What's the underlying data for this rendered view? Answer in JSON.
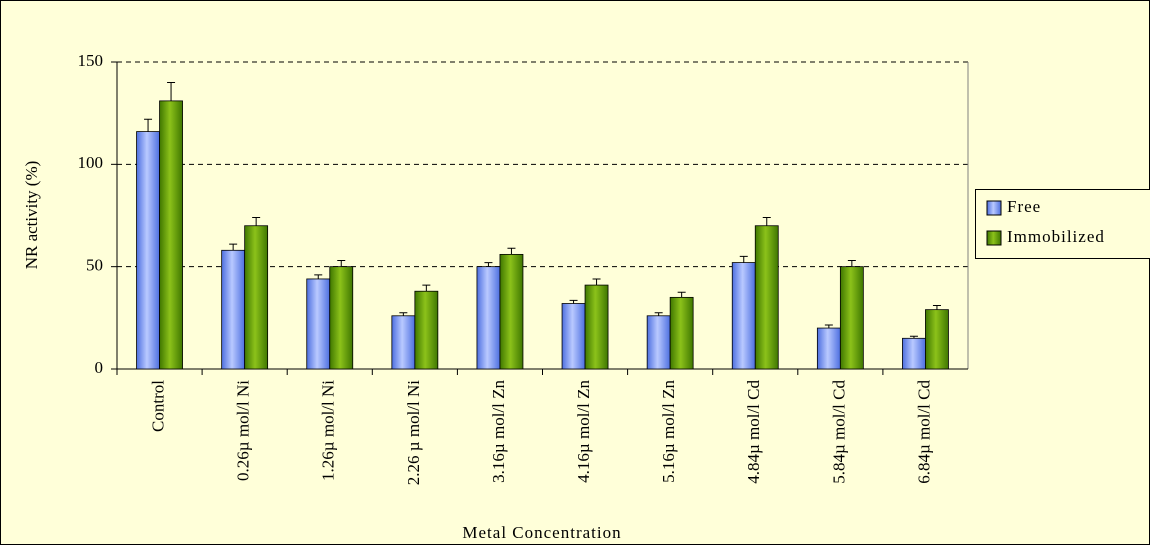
{
  "chart_data": {
    "type": "bar",
    "categories": [
      "Control",
      "0.26µ mol/l Ni",
      "1.26µ mol/l Ni",
      "2.26 µ mol/l Ni",
      "3.16µ mol/l Zn",
      "4.16µ mol/l Zn",
      "5.16µ mol/l Zn",
      "4.84µ mol/l Cd",
      "5.84µ mol/l Cd",
      "6.84µ mol/l Cd"
    ],
    "series": [
      {
        "name": "Free",
        "color": "#7f9ff5",
        "values": [
          116,
          58,
          44,
          26,
          50,
          32,
          26,
          52,
          20,
          15
        ],
        "errors": [
          6,
          3,
          2,
          1.5,
          2,
          1.5,
          1.5,
          3,
          1.5,
          1
        ]
      },
      {
        "name": "Immobilized",
        "color": "#5f9d00",
        "values": [
          131,
          70,
          50,
          38,
          56,
          41,
          35,
          70,
          50,
          29
        ],
        "errors": [
          9,
          4,
          3,
          3,
          3,
          3,
          2.5,
          4,
          3,
          2
        ]
      }
    ],
    "xlabel": "Metal Concentration",
    "ylabel": "NR activity (%)",
    "ylim": [
      0,
      150
    ],
    "yticks": [
      0,
      50,
      100,
      150
    ],
    "grid": true,
    "legend": "right"
  }
}
